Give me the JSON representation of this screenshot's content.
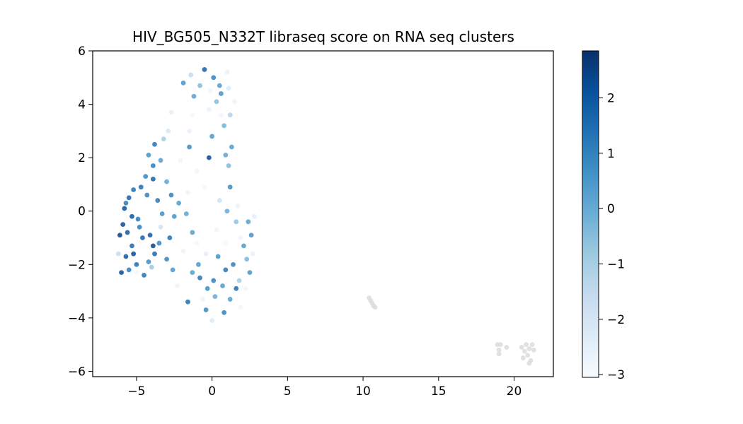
{
  "chart_data": {
    "type": "scatter",
    "title": "HIV_BG505_N332T libraseq score on RNA seq clusters",
    "xlabel": "",
    "ylabel": "",
    "xlim": [
      -7.9,
      22.6
    ],
    "ylim": [
      -6.2,
      6.0
    ],
    "xticks": [
      -5,
      0,
      5,
      10,
      15,
      20
    ],
    "yticks": [
      -6,
      -4,
      -2,
      0,
      2,
      4,
      6
    ],
    "xtick_labels": [
      "−5",
      "0",
      "5",
      "10",
      "15",
      "20"
    ],
    "ytick_labels": [
      "−6",
      "−4",
      "−2",
      "0",
      "2",
      "4",
      "6"
    ],
    "grid": false,
    "colorbar": {
      "cmap": "Blues",
      "range": [
        -3.05,
        2.85
      ],
      "ticks": [
        2,
        1,
        0,
        -1,
        -2,
        -3
      ],
      "tick_labels": [
        "2",
        "1",
        "0",
        "−1",
        "−2",
        "−3"
      ],
      "stops": [
        "#f7fbff",
        "#deebf7",
        "#c6dbef",
        "#9ecae1",
        "#6baed6",
        "#4292c6",
        "#2171b5",
        "#08519c",
        "#08306b"
      ]
    },
    "na_color": "#dcdcdc",
    "points": [
      {
        "x": -5.9,
        "y": -0.5,
        "score": 2.3
      },
      {
        "x": -5.6,
        "y": -0.8,
        "score": 1.9
      },
      {
        "x": -5.3,
        "y": -1.3,
        "score": 1.6
      },
      {
        "x": -4.9,
        "y": -0.3,
        "score": 1.2
      },
      {
        "x": -5.8,
        "y": 0.1,
        "score": 2.1
      },
      {
        "x": -5.5,
        "y": 0.5,
        "score": 1.7
      },
      {
        "x": -5.2,
        "y": 0.8,
        "score": 1.4
      },
      {
        "x": -4.7,
        "y": 0.9,
        "score": 1.5
      },
      {
        "x": -4.3,
        "y": 0.6,
        "score": 1.0
      },
      {
        "x": -6.1,
        "y": -0.9,
        "score": 2.5
      },
      {
        "x": -5.7,
        "y": -1.7,
        "score": 1.9
      },
      {
        "x": -5.0,
        "y": -2.0,
        "score": 1.4
      },
      {
        "x": -5.5,
        "y": -2.2,
        "score": 1.1
      },
      {
        "x": -6.0,
        "y": -2.3,
        "score": 2.2
      },
      {
        "x": -4.5,
        "y": -2.4,
        "score": 1.3
      },
      {
        "x": -4.2,
        "y": -1.9,
        "score": 0.8
      },
      {
        "x": -3.8,
        "y": -1.6,
        "score": 1.6
      },
      {
        "x": -3.5,
        "y": -1.2,
        "score": 0.9
      },
      {
        "x": -3.9,
        "y": -1.3,
        "score": 2.4
      },
      {
        "x": -4.6,
        "y": -1.0,
        "score": 1.7
      },
      {
        "x": -5.3,
        "y": -0.2,
        "score": 2.0
      },
      {
        "x": -5.7,
        "y": 0.3,
        "score": 1.2
      },
      {
        "x": -4.1,
        "y": -0.9,
        "score": 1.9
      },
      {
        "x": -3.3,
        "y": -0.1,
        "score": 0.7
      },
      {
        "x": -3.6,
        "y": 0.4,
        "score": 1.3
      },
      {
        "x": -3.9,
        "y": 1.2,
        "score": 1.8
      },
      {
        "x": -4.4,
        "y": 1.3,
        "score": 0.9
      },
      {
        "x": -3.9,
        "y": 1.7,
        "score": 1.2
      },
      {
        "x": -4.2,
        "y": 2.1,
        "score": 0.6
      },
      {
        "x": -3.8,
        "y": 2.5,
        "score": 1.3
      },
      {
        "x": -3.4,
        "y": 1.9,
        "score": 0.3
      },
      {
        "x": -3.0,
        "y": 1.1,
        "score": 0.2
      },
      {
        "x": -2.7,
        "y": 0.6,
        "score": 1.0
      },
      {
        "x": -2.5,
        "y": -0.2,
        "score": 0.6
      },
      {
        "x": -2.2,
        "y": 0.3,
        "score": 0.4
      },
      {
        "x": -2.8,
        "y": -1.0,
        "score": 1.4
      },
      {
        "x": -3.0,
        "y": -1.8,
        "score": 0.9
      },
      {
        "x": -2.6,
        "y": -2.2,
        "score": 0.5
      },
      {
        "x": -5.2,
        "y": -1.6,
        "score": 2.3
      },
      {
        "x": -4.8,
        "y": -0.6,
        "score": 1.1
      },
      {
        "x": -6.2,
        "y": -1.6,
        "score": -1.6
      },
      {
        "x": -4.0,
        "y": -2.1,
        "score": -0.8
      },
      {
        "x": -3.2,
        "y": 2.7,
        "score": -1.0
      },
      {
        "x": -2.9,
        "y": 3.0,
        "score": -2.1
      },
      {
        "x": -1.5,
        "y": 3.0,
        "score": -2.6
      },
      {
        "x": -1.0,
        "y": 1.5,
        "score": -2.8
      },
      {
        "x": -0.5,
        "y": 0.9,
        "score": -2.9
      },
      {
        "x": -1.6,
        "y": 0.7,
        "score": -2.7
      },
      {
        "x": -2.7,
        "y": 3.7,
        "score": -2.5
      },
      {
        "x": -3.4,
        "y": -0.6,
        "score": -1.8
      },
      {
        "x": -0.5,
        "y": 5.3,
        "score": 1.8
      },
      {
        "x": 0.1,
        "y": 5.0,
        "score": 1.0
      },
      {
        "x": 0.5,
        "y": 4.7,
        "score": 0.4
      },
      {
        "x": -0.8,
        "y": 4.7,
        "score": -0.4
      },
      {
        "x": -1.2,
        "y": 4.3,
        "score": 0.3
      },
      {
        "x": -1.9,
        "y": 4.8,
        "score": 0.6
      },
      {
        "x": -1.4,
        "y": 5.1,
        "score": -1.5
      },
      {
        "x": 0.3,
        "y": 4.1,
        "score": -0.5
      },
      {
        "x": 1.1,
        "y": 4.6,
        "score": -2.2
      },
      {
        "x": 0.6,
        "y": 4.4,
        "score": 0.6
      },
      {
        "x": 1.2,
        "y": 3.6,
        "score": -1.2
      },
      {
        "x": 0.8,
        "y": 3.2,
        "score": -0.2
      },
      {
        "x": 1.3,
        "y": 2.4,
        "score": 0.4
      },
      {
        "x": 0.0,
        "y": 2.8,
        "score": 0.5
      },
      {
        "x": -0.2,
        "y": 3.8,
        "score": -2.6
      },
      {
        "x": 0.6,
        "y": 3.6,
        "score": -2.8
      },
      {
        "x": 1.5,
        "y": 4.1,
        "score": -2.7
      },
      {
        "x": -0.1,
        "y": 4.5,
        "score": -2.8
      },
      {
        "x": -0.2,
        "y": 2.0,
        "score": 2.3
      },
      {
        "x": -1.5,
        "y": 2.4,
        "score": 0.8
      },
      {
        "x": 0.9,
        "y": 2.1,
        "score": 0.2
      },
      {
        "x": 1.1,
        "y": 1.7,
        "score": -0.4
      },
      {
        "x": 1.2,
        "y": 0.9,
        "score": 0.8
      },
      {
        "x": 0.5,
        "y": 0.4,
        "score": -1.8
      },
      {
        "x": -1.3,
        "y": -0.8,
        "score": 0.3
      },
      {
        "x": -1.7,
        "y": -0.1,
        "score": 0.2
      },
      {
        "x": 1.0,
        "y": 0.0,
        "score": 0.0
      },
      {
        "x": 1.6,
        "y": -0.4,
        "score": -0.6
      },
      {
        "x": 2.1,
        "y": -1.3,
        "score": 0.4
      },
      {
        "x": 2.4,
        "y": -0.4,
        "score": 0.3
      },
      {
        "x": 2.6,
        "y": -0.9,
        "score": 0.6
      },
      {
        "x": 2.3,
        "y": -1.8,
        "score": -0.3
      },
      {
        "x": 2.5,
        "y": -2.3,
        "score": 0.5
      },
      {
        "x": 1.8,
        "y": -2.6,
        "score": -1.0
      },
      {
        "x": 1.4,
        "y": -2.0,
        "score": 1.0
      },
      {
        "x": 0.9,
        "y": -2.2,
        "score": 1.3
      },
      {
        "x": 0.4,
        "y": -1.7,
        "score": 0.6
      },
      {
        "x": 0.7,
        "y": -2.8,
        "score": 0.4
      },
      {
        "x": 0.2,
        "y": -3.2,
        "score": 0.0
      },
      {
        "x": -0.3,
        "y": -2.9,
        "score": 0.7
      },
      {
        "x": -0.8,
        "y": -2.5,
        "score": 1.3
      },
      {
        "x": -1.3,
        "y": -2.3,
        "score": 0.3
      },
      {
        "x": -1.6,
        "y": -3.4,
        "score": 1.4
      },
      {
        "x": -0.4,
        "y": -3.7,
        "score": 0.9
      },
      {
        "x": 0.8,
        "y": -3.8,
        "score": 1.0
      },
      {
        "x": 1.2,
        "y": -3.3,
        "score": 0.3
      },
      {
        "x": 1.6,
        "y": -2.9,
        "score": 1.4
      },
      {
        "x": 0.1,
        "y": -2.6,
        "score": 1.1
      },
      {
        "x": -0.9,
        "y": -2.0,
        "score": 0.5
      },
      {
        "x": 0.0,
        "y": -4.1,
        "score": -2.2
      },
      {
        "x": -0.6,
        "y": -3.3,
        "score": -2.7
      },
      {
        "x": 1.9,
        "y": -3.6,
        "score": -2.8
      },
      {
        "x": 2.7,
        "y": -1.6,
        "score": -2.6
      },
      {
        "x": -1.9,
        "y": -1.5,
        "score": -2.7
      },
      {
        "x": -1.0,
        "y": -1.2,
        "score": -2.9
      },
      {
        "x": 0.3,
        "y": -0.7,
        "score": -2.8
      },
      {
        "x": 1.7,
        "y": 0.2,
        "score": -2.6
      },
      {
        "x": -0.4,
        "y": -1.6,
        "score": -2.5
      },
      {
        "x": 0.9,
        "y": -1.2,
        "score": -2.9
      },
      {
        "x": 1.9,
        "y": -1.0,
        "score": -2.7
      },
      {
        "x": -2.1,
        "y": 1.9,
        "score": -2.8
      },
      {
        "x": -1.3,
        "y": 3.6,
        "score": -2.9
      },
      {
        "x": 1.0,
        "y": 5.2,
        "score": -2.6
      },
      {
        "x": -2.3,
        "y": -2.8,
        "score": -2.7
      },
      {
        "x": 2.2,
        "y": -2.9,
        "score": -2.8
      },
      {
        "x": 2.8,
        "y": -0.2,
        "score": -2.5
      },
      {
        "x": -5.0,
        "y": -2.3,
        "score": -2.9
      }
    ],
    "na_points": [
      {
        "x": 10.4,
        "y": -3.25
      },
      {
        "x": 10.5,
        "y": -3.35
      },
      {
        "x": 10.6,
        "y": -3.45
      },
      {
        "x": 10.7,
        "y": -3.55
      },
      {
        "x": 10.8,
        "y": -3.6
      },
      {
        "x": 18.9,
        "y": -5.0
      },
      {
        "x": 19.0,
        "y": -5.2
      },
      {
        "x": 19.1,
        "y": -5.0
      },
      {
        "x": 19.0,
        "y": -5.35
      },
      {
        "x": 19.5,
        "y": -5.1
      },
      {
        "x": 20.5,
        "y": -5.1
      },
      {
        "x": 20.7,
        "y": -5.25
      },
      {
        "x": 20.8,
        "y": -5.0
      },
      {
        "x": 20.9,
        "y": -5.4
      },
      {
        "x": 21.0,
        "y": -5.15
      },
      {
        "x": 21.1,
        "y": -5.6
      },
      {
        "x": 21.2,
        "y": -5.0
      },
      {
        "x": 21.3,
        "y": -5.2
      },
      {
        "x": 20.6,
        "y": -5.5
      },
      {
        "x": 21.0,
        "y": -5.7
      }
    ]
  }
}
